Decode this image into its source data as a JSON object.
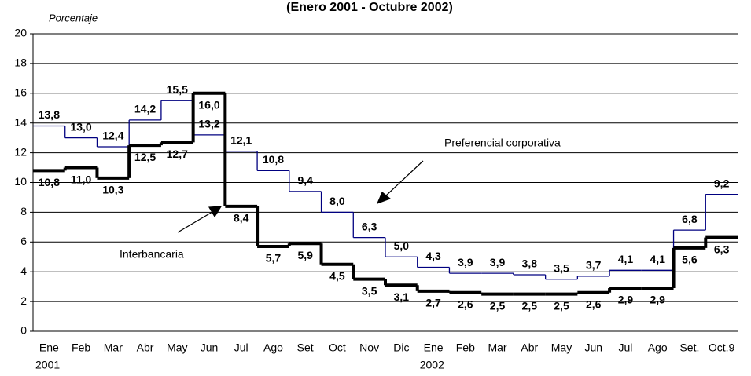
{
  "chart_data": {
    "type": "step-line",
    "title": "(Enero 2001 - Octubre 2002)",
    "y_label": "Porcentaje",
    "categories": [
      "Ene",
      "Feb",
      "Mar",
      "Abr",
      "May",
      "Jun",
      "Jul",
      "Ago",
      "Set",
      "Oct",
      "Nov",
      "Dic",
      "Ene",
      "Feb",
      "Mar",
      "Abr",
      "May",
      "Jun",
      "Jul",
      "Ago",
      "Set.",
      "Oct.9"
    ],
    "year_labels": [
      "2001",
      null,
      null,
      null,
      null,
      null,
      null,
      null,
      null,
      null,
      null,
      null,
      "2002",
      null,
      null,
      null,
      null,
      null,
      null,
      null,
      null,
      null
    ],
    "ylim": [
      0,
      20
    ],
    "yticks": [
      0,
      2,
      4,
      6,
      8,
      10,
      12,
      14,
      16,
      18,
      20
    ],
    "grid": true,
    "series": [
      {
        "name": "Preferencial corporativa",
        "color": "#000080",
        "values": [
          13.8,
          13.0,
          12.4,
          14.2,
          15.5,
          13.2,
          12.1,
          10.8,
          9.4,
          8.0,
          6.3,
          5.0,
          4.3,
          3.9,
          3.9,
          3.8,
          3.5,
          3.7,
          4.1,
          4.1,
          6.8,
          9.2
        ],
        "value_labels": [
          "13,8",
          "13,0",
          "12,4",
          "14,2",
          "15,5",
          "13,2",
          "12,1",
          "10,8",
          "9,4",
          "8,0",
          "6,3",
          "5,0",
          "4,3",
          "3,9",
          "3,9",
          "3,8",
          "3,5",
          "3,7",
          "4,1",
          "4,1",
          "6,8",
          "9,2"
        ]
      },
      {
        "name": "Interbancaria",
        "color": "#000000",
        "values": [
          10.8,
          11.0,
          10.3,
          12.5,
          12.7,
          16.0,
          8.4,
          5.7,
          5.9,
          4.5,
          3.5,
          3.1,
          2.7,
          2.6,
          2.5,
          2.5,
          2.5,
          2.6,
          2.9,
          2.9,
          5.6,
          6.3
        ],
        "value_labels": [
          "10,8",
          "11,0",
          "10,3",
          "12,5",
          "12,7",
          "16,0",
          "8,4",
          "5,7",
          "5,9",
          "4,5",
          "3,5",
          "3,1",
          "2,7",
          "2,6",
          "2,5",
          "2,5",
          "2,5",
          "2,6",
          "2,9",
          "2,9",
          "5,6",
          "6,3"
        ]
      }
    ]
  }
}
